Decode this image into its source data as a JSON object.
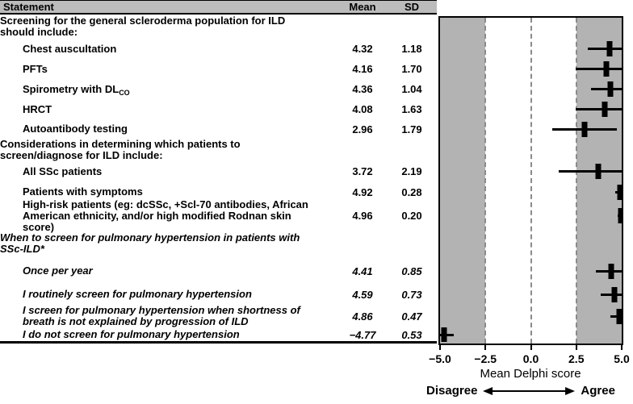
{
  "table": {
    "header": {
      "statement": "Statement",
      "mean": "Mean",
      "sd": "SD"
    }
  },
  "chart_data": {
    "type": "forest",
    "xlabel": "Mean Delphi score",
    "xlim": [
      -5,
      5
    ],
    "x_tick_values": [
      -5,
      -2.5,
      0,
      2.5,
      5
    ],
    "x_tick_labels": [
      "−5.0",
      "−2.5",
      "0.0",
      "2.5",
      "5.0"
    ],
    "shaded_bands": [
      [
        -5,
        -2.5
      ],
      [
        2.5,
        5
      ]
    ],
    "dashed_lines": [
      -2.5,
      0,
      2.5
    ],
    "legend": {
      "left": "Disagree",
      "right": "Agree"
    },
    "rows": [
      {
        "type": "group",
        "label": "Screening for the general scleroderma population for ILD should include:"
      },
      {
        "type": "item",
        "label": "Chest auscultation",
        "mean": 4.32,
        "sd": 1.18,
        "mean_str": "4.32",
        "sd_str": "1.18"
      },
      {
        "type": "item",
        "label": "PFTs",
        "mean": 4.16,
        "sd": 1.7,
        "mean_str": "4.16",
        "sd_str": "1.70"
      },
      {
        "type": "item",
        "label": "Spirometry with DL",
        "label_sub": "CO",
        "mean": 4.36,
        "sd": 1.04,
        "mean_str": "4.36",
        "sd_str": "1.04"
      },
      {
        "type": "item",
        "label": "HRCT",
        "mean": 4.08,
        "sd": 1.63,
        "mean_str": "4.08",
        "sd_str": "1.63"
      },
      {
        "type": "item",
        "label": "Autoantibody testing",
        "mean": 2.96,
        "sd": 1.79,
        "mean_str": "2.96",
        "sd_str": "1.79"
      },
      {
        "type": "group",
        "label": "Considerations in determining which patients to screen/diagnose for ILD include:"
      },
      {
        "type": "item",
        "label": "All SSc patients",
        "mean": 3.72,
        "sd": 2.19,
        "mean_str": "3.72",
        "sd_str": "2.19"
      },
      {
        "type": "item",
        "label": "Patients with symptoms",
        "mean": 4.92,
        "sd": 0.28,
        "mean_str": "4.92",
        "sd_str": "0.28"
      },
      {
        "type": "item",
        "label": "High-risk patients (eg: dcSSc, +Scl-70 antibodies, African American ethnicity, and/or high modified Rodnan skin score)",
        "mean": 4.96,
        "sd": 0.2,
        "mean_str": "4.96",
        "sd_str": "0.20"
      },
      {
        "type": "group",
        "italic": true,
        "label": "When to screen for pulmonary hypertension in patients with SSc-ILD*"
      },
      {
        "type": "item",
        "italic": true,
        "label": "Once per year",
        "mean": 4.41,
        "sd": 0.85,
        "mean_str": "4.41",
        "sd_str": "0.85"
      },
      {
        "type": "item",
        "italic": true,
        "label": "I routinely screen for pulmonary hypertension",
        "mean": 4.59,
        "sd": 0.73,
        "mean_str": "4.59",
        "sd_str": "0.73"
      },
      {
        "type": "item",
        "italic": true,
        "label": "I screen for pulmonary hypertension when shortness of breath is not explained by progression of ILD",
        "mean": 4.86,
        "sd": 0.47,
        "mean_str": "4.86",
        "sd_str": "0.47"
      },
      {
        "type": "item",
        "italic": true,
        "label": "I do not screen for pulmonary hypertension",
        "mean": -4.77,
        "sd": 0.53,
        "mean_str": "−4.77",
        "sd_str": "0.53"
      }
    ]
  },
  "colors": {
    "shade": "#b3b3b3",
    "header_bg": "#bcbcbc",
    "dashed_line": "#8a8a8a",
    "marker": "#000000"
  }
}
